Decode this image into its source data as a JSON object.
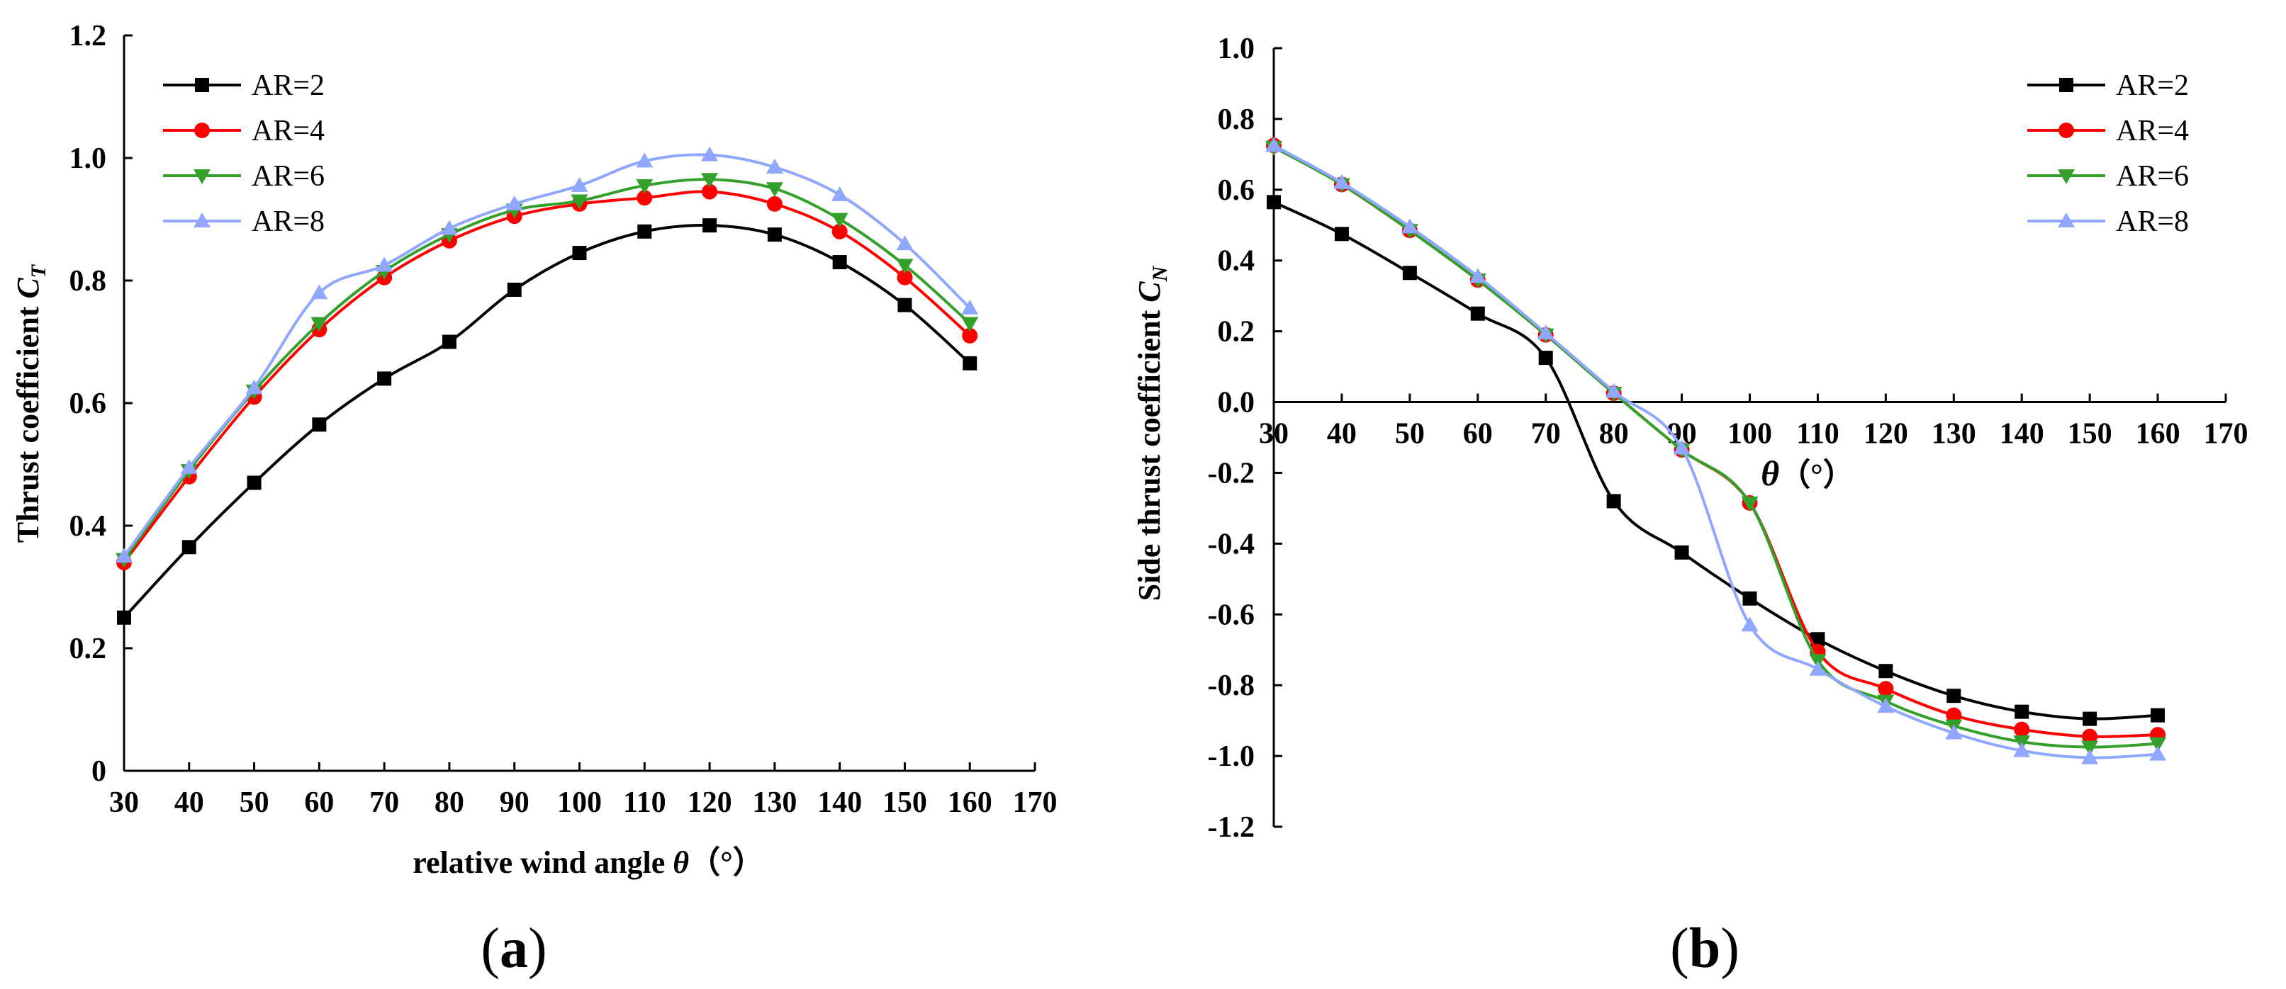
{
  "chart_data": [
    {
      "type": "line",
      "panel_label": "(a)",
      "panel_letter": "a",
      "xlabel": "relative wind angle",
      "xlabel_symbol": "θ",
      "xlabel_unit": "（°）",
      "ylabel": "Thrust coefficient",
      "ylabel_symbol": "C",
      "ylabel_sub": "T",
      "xlim": [
        30,
        170
      ],
      "ylim": [
        0,
        1.2
      ],
      "xticks": [
        "30",
        "40",
        "50",
        "60",
        "70",
        "80",
        "90",
        "100",
        "110",
        "120",
        "130",
        "140",
        "150",
        "160",
        "170"
      ],
      "yticks": [
        "0",
        "0.2",
        "0.4",
        "0.6",
        "0.8",
        "1.0",
        "1.2"
      ],
      "legend_position": "top-left",
      "x": [
        30,
        40,
        50,
        60,
        70,
        80,
        90,
        100,
        110,
        120,
        130,
        140,
        150,
        160
      ],
      "series": [
        {
          "name": "AR=2",
          "color": "#000000",
          "marker": "square",
          "values": [
            0.25,
            0.365,
            0.47,
            0.565,
            0.64,
            0.7,
            0.785,
            0.845,
            0.88,
            0.89,
            0.875,
            0.83,
            0.76,
            0.665
          ]
        },
        {
          "name": "AR=4",
          "color": "#ff0000",
          "marker": "circle",
          "values": [
            0.34,
            0.48,
            0.61,
            0.72,
            0.805,
            0.865,
            0.905,
            0.925,
            0.935,
            0.945,
            0.925,
            0.88,
            0.805,
            0.71
          ]
        },
        {
          "name": "AR=6",
          "color": "#33a02c",
          "marker": "triangle-down",
          "values": [
            0.345,
            0.49,
            0.62,
            0.73,
            0.815,
            0.875,
            0.915,
            0.93,
            0.955,
            0.965,
            0.95,
            0.9,
            0.825,
            0.73
          ]
        },
        {
          "name": "AR=8",
          "color": "#8fa7ff",
          "marker": "triangle-up",
          "values": [
            0.35,
            0.495,
            0.625,
            0.78,
            0.825,
            0.885,
            0.925,
            0.955,
            0.995,
            1.005,
            0.985,
            0.94,
            0.86,
            0.755
          ]
        }
      ]
    },
    {
      "type": "line",
      "panel_label": "(b)",
      "panel_letter": "b",
      "xlabel": "",
      "xlabel_symbol": "θ",
      "xlabel_unit": "（°）",
      "ylabel": "Side thrust coefficient",
      "ylabel_symbol": "C",
      "ylabel_sub": "N",
      "xlim": [
        30,
        170
      ],
      "ylim": [
        -1.2,
        1.0
      ],
      "xticks": [
        "30",
        "40",
        "50",
        "60",
        "70",
        "80",
        "90",
        "100",
        "110",
        "120",
        "130",
        "140",
        "150",
        "160",
        "170"
      ],
      "yticks": [
        "-1.2",
        "-1.0",
        "-0.8",
        "-0.6",
        "-0.4",
        "-0.2",
        "0.0",
        "0.2",
        "0.4",
        "0.6",
        "0.8",
        "1.0"
      ],
      "legend_position": "top-right",
      "x": [
        30,
        40,
        50,
        60,
        70,
        80,
        90,
        100,
        110,
        120,
        130,
        140,
        150,
        160
      ],
      "series": [
        {
          "name": "AR=2",
          "color": "#000000",
          "marker": "square",
          "values": [
            0.565,
            0.475,
            0.365,
            0.25,
            0.125,
            -0.28,
            -0.425,
            -0.555,
            -0.67,
            -0.76,
            -0.83,
            -0.875,
            -0.895,
            -0.885
          ]
        },
        {
          "name": "AR=4",
          "color": "#ff0000",
          "marker": "circle",
          "values": [
            0.725,
            0.615,
            0.485,
            0.345,
            0.19,
            0.025,
            -0.135,
            -0.285,
            -0.705,
            -0.81,
            -0.885,
            -0.925,
            -0.945,
            -0.94
          ]
        },
        {
          "name": "AR=6",
          "color": "#33a02c",
          "marker": "triangle-down",
          "values": [
            0.72,
            0.615,
            0.485,
            0.345,
            0.19,
            0.025,
            -0.135,
            -0.285,
            -0.73,
            -0.845,
            -0.915,
            -0.96,
            -0.975,
            -0.965
          ]
        },
        {
          "name": "AR=8",
          "color": "#8fa7ff",
          "marker": "triangle-up",
          "values": [
            0.725,
            0.62,
            0.495,
            0.355,
            0.195,
            0.03,
            -0.13,
            -0.63,
            -0.755,
            -0.86,
            -0.935,
            -0.985,
            -1.005,
            -0.995
          ]
        }
      ]
    }
  ]
}
